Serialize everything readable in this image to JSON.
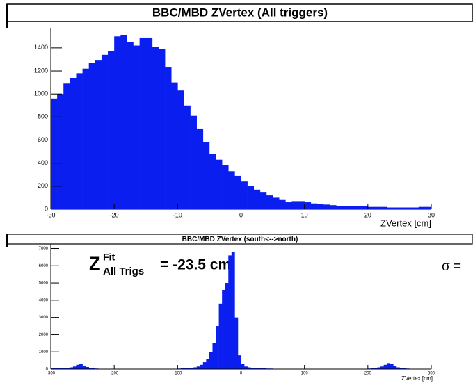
{
  "chart_data": [
    {
      "type": "histogram",
      "title": "BBC/MBD ZVertex (All triggers)",
      "xlabel": "ZVertex [cm]",
      "color": "#0a1ef0",
      "bins": [
        -30,
        -29,
        -28,
        -27,
        -26,
        -25,
        -24,
        -23,
        -22,
        -21,
        -20,
        -19,
        -18,
        -17,
        -16,
        -15,
        -14,
        -13,
        -12,
        -11,
        -10,
        -9,
        -8,
        -7,
        -6,
        -5,
        -4,
        -3,
        -2,
        -1,
        0,
        1,
        2,
        3,
        4,
        5,
        6,
        7,
        8,
        9,
        10,
        11,
        12,
        13,
        14,
        15,
        16,
        17,
        18,
        19,
        20,
        21,
        22,
        23,
        24,
        25,
        26,
        27,
        28,
        29,
        30
      ],
      "values": [
        960,
        1000,
        1090,
        1140,
        1180,
        1220,
        1270,
        1290,
        1340,
        1370,
        1500,
        1510,
        1450,
        1420,
        1490,
        1490,
        1410,
        1390,
        1230,
        1100,
        1030,
        900,
        810,
        700,
        580,
        480,
        430,
        380,
        330,
        290,
        240,
        200,
        170,
        150,
        120,
        100,
        80,
        60,
        70,
        70,
        60,
        50,
        45,
        40,
        35,
        30,
        30,
        30,
        25,
        25,
        20,
        20,
        20,
        15,
        15,
        15,
        15,
        15,
        20,
        20
      ],
      "xlim": [
        -30,
        30
      ],
      "xticks": [
        -30,
        -20,
        -10,
        0,
        10,
        20,
        30
      ],
      "ylim": [
        0,
        1550
      ],
      "yticks": [
        0,
        200,
        400,
        600,
        800,
        1000,
        1200,
        1400
      ]
    },
    {
      "type": "histogram",
      "title": "BBC/MBD ZVertex (south<-->north)",
      "xlabel": "ZVertex [cm]",
      "color": "#0a1ef0",
      "bins": [
        -300,
        -295,
        -290,
        -285,
        -280,
        -275,
        -270,
        -265,
        -260,
        -255,
        -250,
        -245,
        -240,
        -235,
        -230,
        -225,
        -220,
        -215,
        -210,
        -205,
        -200,
        -195,
        -190,
        -185,
        -180,
        -175,
        -170,
        -165,
        -160,
        -155,
        -150,
        -145,
        -140,
        -135,
        -130,
        -125,
        -120,
        -115,
        -110,
        -105,
        -100,
        -95,
        -90,
        -85,
        -80,
        -75,
        -70,
        -65,
        -60,
        -55,
        -50,
        -45,
        -40,
        -35,
        -30,
        -25,
        -20,
        -15,
        -10,
        -5,
        0,
        5,
        10,
        15,
        20,
        25,
        30,
        35,
        40,
        45,
        50,
        55,
        60,
        65,
        70,
        75,
        80,
        85,
        90,
        95,
        100,
        105,
        110,
        115,
        120,
        125,
        130,
        135,
        140,
        145,
        150,
        155,
        160,
        165,
        170,
        175,
        180,
        185,
        190,
        195,
        200,
        205,
        210,
        215,
        220,
        225,
        230,
        235,
        240,
        245,
        250,
        255,
        260,
        265,
        270,
        275,
        280,
        285,
        290,
        295,
        300
      ],
      "values": [
        80,
        60,
        70,
        50,
        60,
        80,
        100,
        150,
        250,
        300,
        200,
        120,
        60,
        40,
        30,
        20,
        20,
        20,
        20,
        20,
        15,
        15,
        15,
        15,
        15,
        15,
        15,
        15,
        15,
        15,
        15,
        15,
        15,
        15,
        15,
        15,
        15,
        15,
        15,
        15,
        30,
        40,
        50,
        60,
        80,
        100,
        150,
        250,
        400,
        600,
        1000,
        1500,
        2500,
        3800,
        4600,
        5000,
        6600,
        6800,
        3000,
        800,
        300,
        150,
        100,
        80,
        60,
        50,
        40,
        40,
        30,
        30,
        20,
        20,
        20,
        20,
        20,
        20,
        20,
        20,
        20,
        20,
        20,
        20,
        20,
        20,
        20,
        20,
        20,
        20,
        20,
        20,
        20,
        20,
        20,
        20,
        20,
        20,
        20,
        20,
        20,
        20,
        30,
        40,
        60,
        100,
        150,
        250,
        350,
        300,
        200,
        100,
        60,
        40,
        30,
        20,
        20,
        20,
        20,
        20,
        20,
        20
      ],
      "xlim": [
        -300,
        300
      ],
      "xticks": [
        -300,
        -200,
        -100,
        0,
        100,
        200,
        300
      ],
      "ylim": [
        0,
        7100
      ],
      "yticks": [
        0,
        1000,
        2000,
        3000,
        4000,
        5000,
        6000,
        7000
      ],
      "annotations": {
        "symbol": "Z",
        "sup": "Fit",
        "sub": "All Trigs",
        "text": "= -23.5 cm",
        "sigma": "σ ="
      }
    }
  ]
}
